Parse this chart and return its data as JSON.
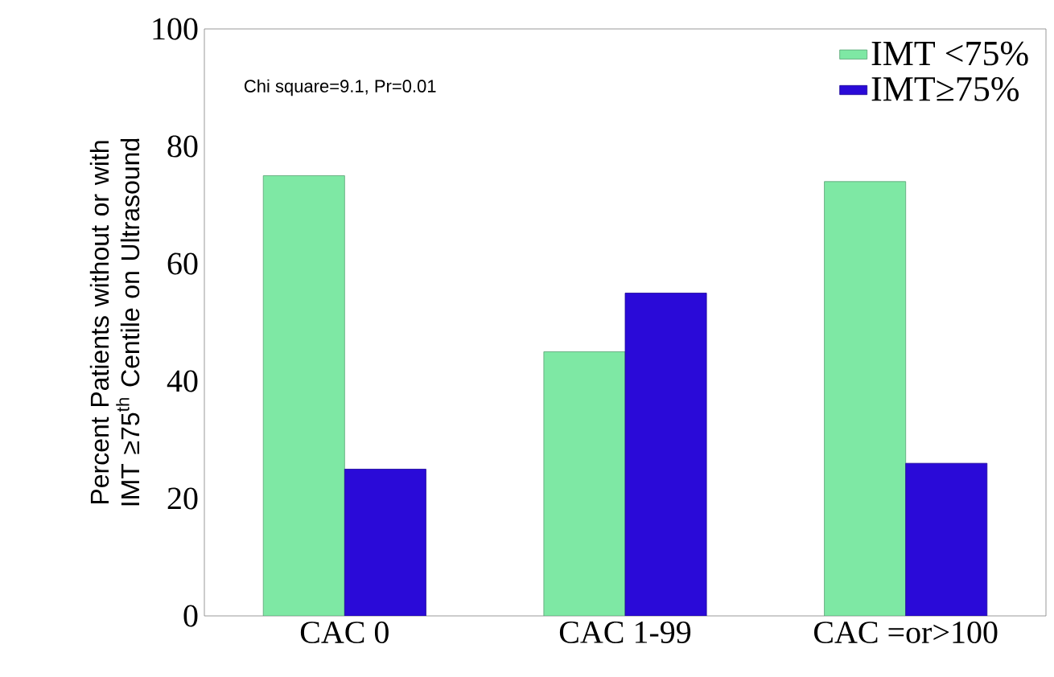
{
  "chart_data": {
    "type": "bar",
    "ylabel": "Percent Patients without or with IMT ≥75$^{th}$ Centile on Ultrasound",
    "categories": [
      "CAC 0",
      "CAC 1-99",
      "CAC =or>100"
    ],
    "series": [
      {
        "name": "IMT <75%",
        "color": "#7ee8a4",
        "values": [
          75,
          45,
          74
        ]
      },
      {
        "name": "IMT≥75%",
        "color": "#2a0ad8",
        "values": [
          25,
          55,
          26
        ]
      }
    ],
    "ylim": [
      0,
      100
    ],
    "yticks": [
      0,
      20,
      40,
      60,
      80,
      100
    ],
    "legend": "top right",
    "grid": false,
    "annotations": [
      "Chi square=9.1, Pr=0.01"
    ]
  }
}
